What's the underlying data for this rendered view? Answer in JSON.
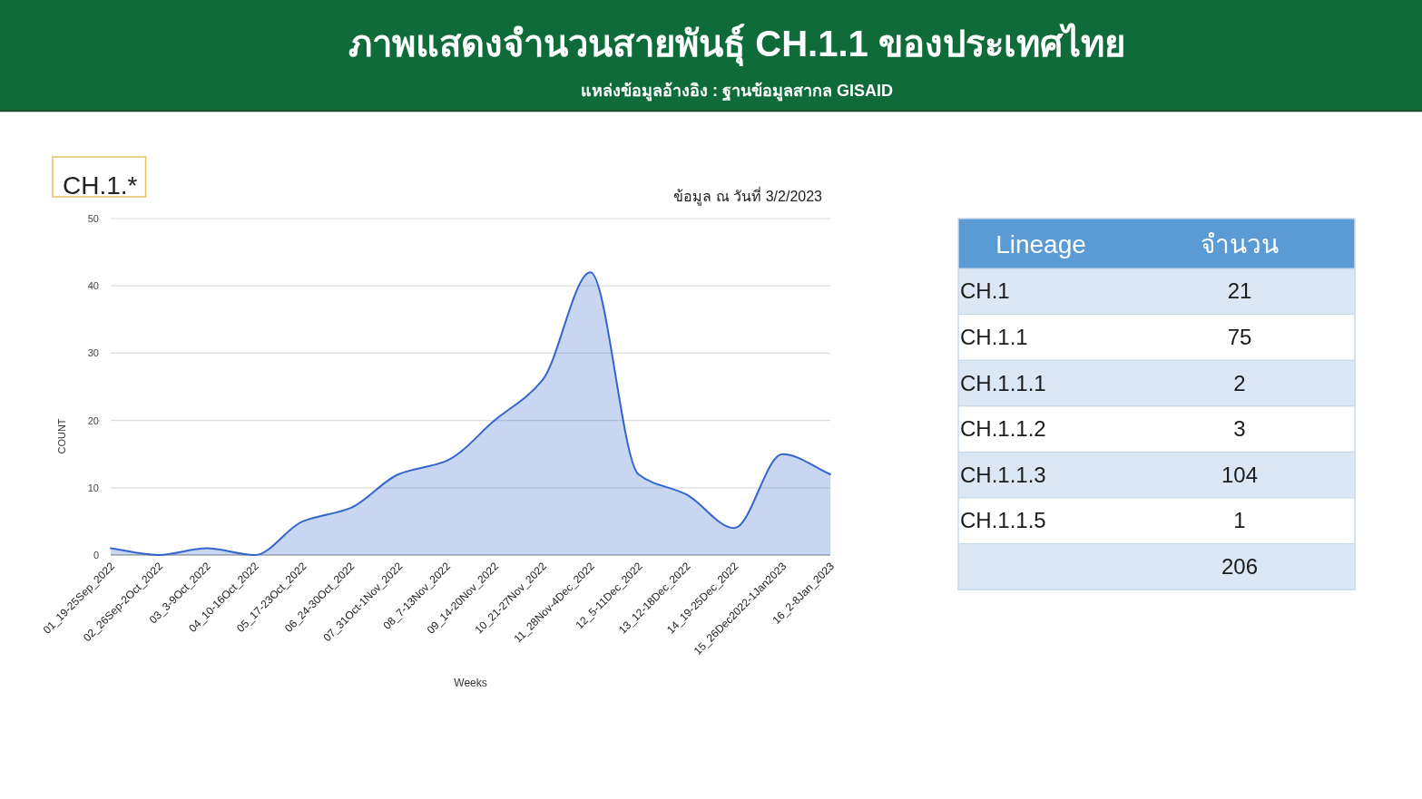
{
  "chart_data": [
    {
      "type": "area",
      "title": "ภาพแสดงจำนวนสายพันธุ์ CH.1.1 ของประเทศไทย",
      "subtitle": "แหล่งข้อมูลอ้างอิง : ฐานข้อมูลสากล GISAID",
      "annotations": [
        "CH.1.*",
        "ข้อมูล ณ วันที่ 3/2/2023"
      ],
      "xlabel": "Weeks",
      "ylabel": "COUNT",
      "categories": [
        "01_19-25Sep_2022",
        "02_26Sep-2Oct_2022",
        "03_3-9Oct_2022",
        "04_10-16Oct_2022",
        "05_17-23Oct_2022",
        "06_24-30Oct_2022",
        "07_31Oct-1Nov_2022",
        "08_7-13Nov_2022",
        "09_14-20Nov_2022",
        "10_21-27Nov_2022",
        "11_28Nov-4Dec_2022",
        "12_5-11Dec_2022",
        "13_12-18Dec_2022",
        "14_19-25Dec_2022",
        "15_26Dec2022-1Jan2023",
        "16_2-8Jan_2023"
      ],
      "values": [
        1,
        0,
        1,
        0,
        5,
        7,
        12,
        14,
        20,
        26,
        42,
        12,
        9,
        4,
        15,
        12
      ],
      "color": "#3366cc",
      "ylim": [
        0,
        50
      ],
      "yticks": [
        0,
        10,
        20,
        30,
        40,
        50
      ],
      "grid": "y"
    },
    {
      "type": "other",
      "xlabel": "Lineage",
      "ylabel": "จำนวน",
      "categories": [
        "CH.1",
        "CH.1.1",
        "CH.1.1.1",
        "CH.1.1.2",
        "CH.1.1.3",
        "CH.1.1.5",
        null
      ],
      "values": [
        21,
        75,
        2,
        3,
        104,
        1,
        206
      ],
      "data_labels": true
    }
  ]
}
